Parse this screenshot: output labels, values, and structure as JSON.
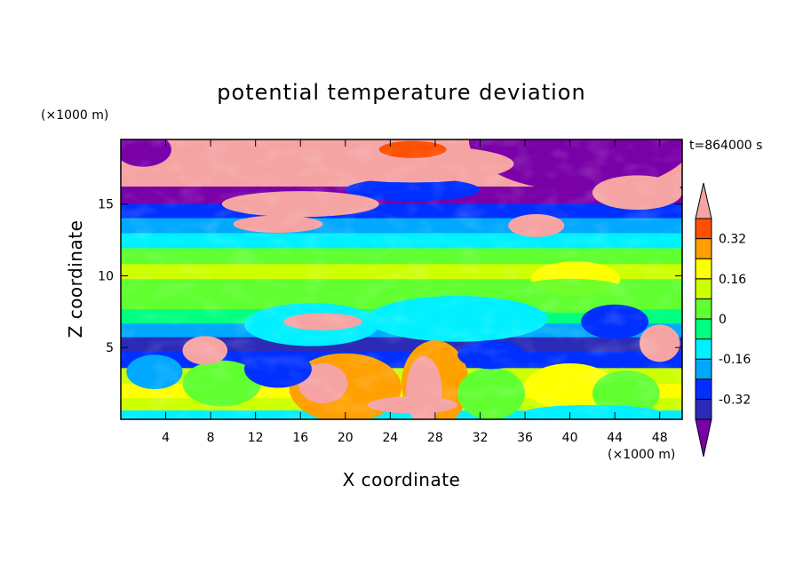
{
  "chart_data": {
    "type": "heatmap",
    "title": "potential temperature deviation",
    "xlabel": "X coordinate",
    "ylabel": "Z coordinate",
    "x_unit": "(×1000 m)",
    "y_unit": "(×1000 m)",
    "time_label": "t=864000 s",
    "xlim": [
      0,
      50
    ],
    "ylim": [
      0,
      19.5
    ],
    "x_ticks": [
      4,
      8,
      12,
      16,
      20,
      24,
      28,
      32,
      36,
      40,
      44,
      48
    ],
    "y_ticks": [
      5,
      10,
      15
    ],
    "colorbar": {
      "levels": [
        -0.4,
        -0.32,
        -0.24,
        -0.16,
        -0.08,
        0,
        0.08,
        0.16,
        0.24,
        0.32,
        0.4
      ],
      "tick_values": [
        -0.32,
        -0.16,
        0,
        0.16,
        0.32
      ],
      "tick_labels": [
        "-0.32",
        "-0.16",
        "0",
        "0.16",
        "0.32"
      ],
      "colors": [
        "#7a00a8",
        "#2b2bb8",
        "#0030ff",
        "#00a8ff",
        "#00f0ff",
        "#00ff80",
        "#60ff30",
        "#ccff00",
        "#ffff00",
        "#ffa000",
        "#ff5000",
        "#ff2020",
        "#f5a3a3"
      ],
      "extend": "both"
    },
    "layers": [
      {
        "z": 0.3,
        "value": -0.1
      },
      {
        "z": 1.0,
        "value": 0.12
      },
      {
        "z": 2.0,
        "value": 0.2
      },
      {
        "z": 3.0,
        "value": 0.1
      },
      {
        "z": 4.2,
        "value": -0.3
      },
      {
        "z": 5.3,
        "value": -0.38
      },
      {
        "z": 6.2,
        "value": -0.24
      },
      {
        "z": 7.2,
        "value": -0.05
      },
      {
        "z": 8.2,
        "value": 0.02
      },
      {
        "z": 9.3,
        "value": 0.06
      },
      {
        "z": 10.3,
        "value": 0.08
      },
      {
        "z": 11.4,
        "value": 0.02
      },
      {
        "z": 12.5,
        "value": -0.1
      },
      {
        "z": 13.5,
        "value": -0.2
      },
      {
        "z": 14.6,
        "value": -0.32
      },
      {
        "z": 15.5,
        "value": -0.45
      },
      {
        "z": 17.0,
        "value": 0.45
      },
      {
        "z": 18.8,
        "value": 0.45
      }
    ]
  }
}
